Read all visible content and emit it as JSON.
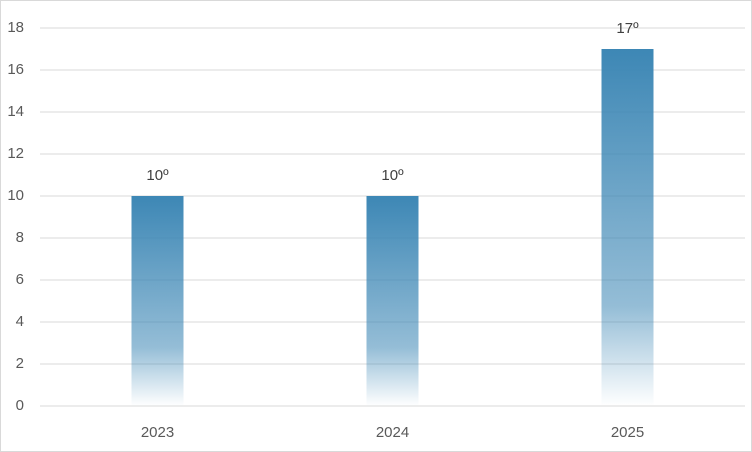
{
  "chart_data": {
    "type": "bar",
    "categories": [
      "2023",
      "2024",
      "2025"
    ],
    "values": [
      10,
      10,
      17
    ],
    "value_labels": [
      "10º",
      "10º",
      "17º"
    ],
    "color": "#3d87b5",
    "ylim": [
      0,
      18
    ],
    "yticks": [
      0,
      2,
      4,
      6,
      8,
      10,
      12,
      14,
      16,
      18
    ],
    "grid": true
  }
}
